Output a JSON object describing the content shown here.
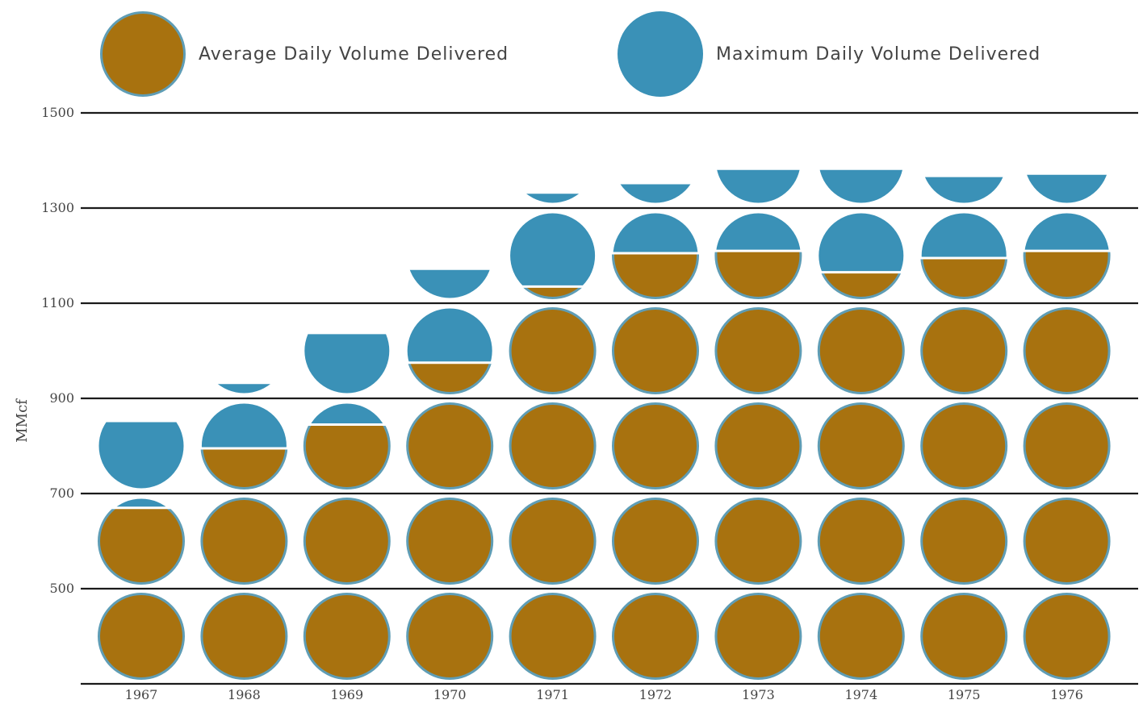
{
  "colors": {
    "average": "#a8720f",
    "maximum": "#3a91b7",
    "average_rim": "#5f9db5",
    "gridline": "#1a1a1a",
    "background": "#ffffff"
  },
  "legend": {
    "average_label": "Average Daily Volume Delivered",
    "maximum_label": "Maximum Daily Volume Delivered"
  },
  "chart_data": {
    "type": "bar",
    "title": "",
    "xlabel": "",
    "ylabel": "MMcf",
    "ylim": [
      300,
      1500
    ],
    "yticks": [
      1500,
      1300,
      1100,
      900,
      700,
      500
    ],
    "ytick_labels": [
      "1500",
      "1300",
      "1100",
      "900",
      "700",
      "500"
    ],
    "unit_per_symbol": 200,
    "grid": true,
    "legend_position": "top",
    "categories": [
      "1967",
      "1968",
      "1969",
      "1970",
      "1971",
      "1972",
      "1973",
      "1974",
      "1975",
      "1976"
    ],
    "series": [
      {
        "name": "Average Daily Volume Delivered",
        "values": [
          670,
          795,
          845,
          975,
          1135,
          1205,
          1210,
          1165,
          1195,
          1210
        ]
      },
      {
        "name": "Maximum Daily Volume Delivered",
        "values": [
          850,
          930,
          1035,
          1170,
          1330,
          1350,
          1380,
          1380,
          1365,
          1370
        ]
      }
    ]
  }
}
